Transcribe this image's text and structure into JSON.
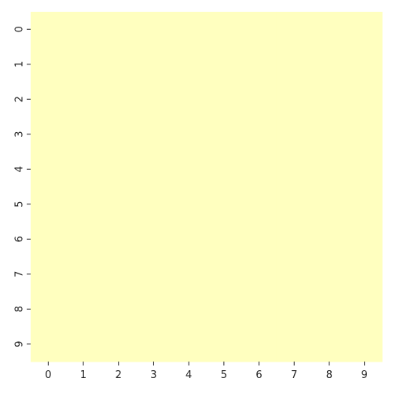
{
  "chart_data": {
    "type": "heatmap",
    "title": "",
    "xlabel": "",
    "ylabel": "",
    "x_categories": [
      "0",
      "1",
      "2",
      "3",
      "4",
      "5",
      "6",
      "7",
      "8",
      "9"
    ],
    "y_categories": [
      "0",
      "1",
      "2",
      "3",
      "4",
      "5",
      "6",
      "7",
      "8",
      "9"
    ],
    "values": [
      [
        0,
        0,
        0,
        0,
        0,
        0,
        0,
        0,
        0,
        0
      ],
      [
        0,
        0,
        0,
        0,
        0,
        0,
        0,
        0,
        0,
        0
      ],
      [
        0,
        0,
        0,
        0,
        0,
        0,
        0,
        0,
        0,
        0
      ],
      [
        0,
        0,
        0,
        0,
        0,
        0,
        0,
        0,
        0,
        0
      ],
      [
        0,
        0,
        0,
        0,
        0,
        0,
        0,
        0,
        0,
        0
      ],
      [
        0,
        0,
        0,
        0,
        0,
        0,
        0,
        0,
        0,
        0
      ],
      [
        0,
        0,
        0,
        0,
        0,
        0,
        0,
        0,
        0,
        0
      ],
      [
        0,
        0,
        0,
        0,
        0,
        0,
        0,
        0,
        0,
        0
      ],
      [
        0,
        0,
        0,
        0,
        0,
        0,
        0,
        0,
        0,
        0
      ],
      [
        0,
        0,
        0,
        0,
        0,
        0,
        0,
        0,
        0,
        0
      ]
    ],
    "colorbar": false,
    "grid": false,
    "cell_color": "#ffffbf"
  }
}
